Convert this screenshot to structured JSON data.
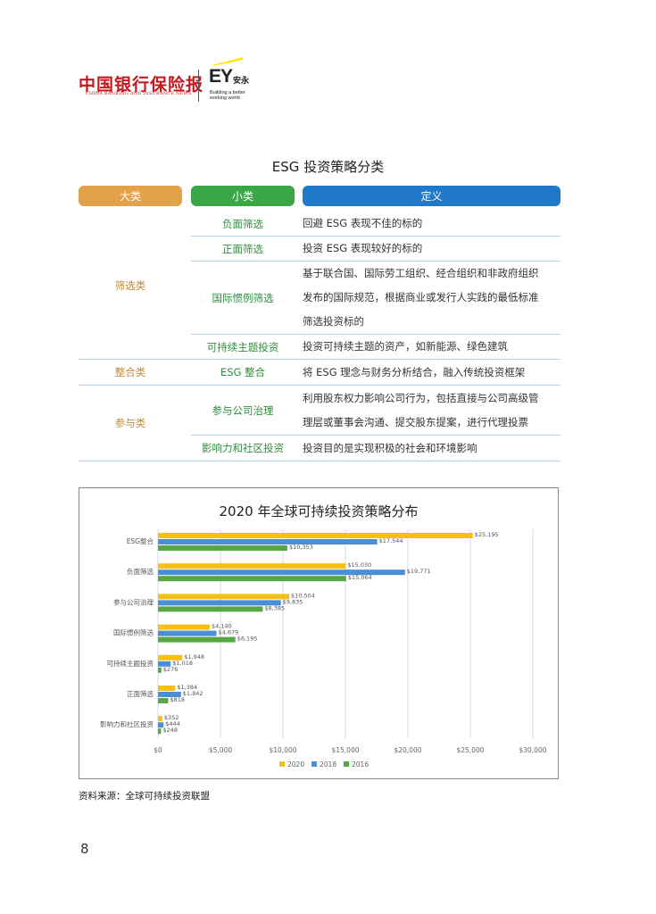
{
  "header": {
    "brand_cn": "中国银行保险报",
    "brand_en": "CHINA BANKING AND INSURANCE NEWS",
    "ey_logo": "EY",
    "ey_cn": "安永",
    "ey_tagline_1": "Building a better",
    "ey_tagline_2": "working world",
    "colors": {
      "brand_red": "#c8161d",
      "ey_yellow": "#ffe600"
    }
  },
  "table": {
    "title": "ESG 投资策略分类",
    "headers": {
      "category": "大类",
      "subcategory": "小类",
      "definition": "定义"
    },
    "header_colors": {
      "category": "#e3a24a",
      "subcategory": "#3aa646",
      "definition": "#1f78c8"
    },
    "rows": [
      {
        "subcategory": "负面筛选",
        "definition_lines": [
          "回避 ESG 表现不佳的标的"
        ]
      },
      {
        "subcategory": "正面筛选",
        "definition_lines": [
          "投资 ESG 表现较好的标的"
        ]
      },
      {
        "subcategory": "国际惯例筛选",
        "definition_lines": [
          "基于联合国、国际劳工组织、经合组织和非政府组织",
          "发布的国际规范，根据商业或发行人实践的最低标准",
          "筛选投资标的"
        ]
      },
      {
        "subcategory": "可持续主题投资",
        "definition_lines": [
          "投资可持续主题的资产，如新能源、绿色建筑"
        ]
      },
      {
        "subcategory": "ESG 整合",
        "definition_lines": [
          "将 ESG 理念与财务分析结合，融入传统投资框架"
        ]
      },
      {
        "subcategory": "参与公司治理",
        "definition_lines": [
          "利用股东权力影响公司行为，包括直接与公司高级管",
          "理层或董事会沟通、提交股东提案，进行代理投票"
        ]
      },
      {
        "subcategory": "影响力和社区投资",
        "definition_lines": [
          "投资目的是实现积极的社会和环境影响"
        ]
      }
    ],
    "categories": [
      {
        "label": "筛选类"
      },
      {
        "label": "整合类"
      },
      {
        "label": "参与类"
      }
    ]
  },
  "chart_data": {
    "type": "bar",
    "orientation": "horizontal",
    "title": "2020 年全球可持续投资策略分布",
    "categories": [
      "ESG整合",
      "负面筛选",
      "参与公司治理",
      "国际惯例筛选",
      "可持续主题投资",
      "正面筛选",
      "影响力和社区投资"
    ],
    "series": [
      {
        "name": "2020",
        "color": "#f5bf13",
        "values": [
          25195,
          15030,
          10504,
          4140,
          1948,
          1384,
          352
        ],
        "labels": [
          "$25,195",
          "$15,030",
          "$10,504",
          "$4,140",
          "$1,948",
          "$1,384",
          "$352"
        ]
      },
      {
        "name": "2018",
        "color": "#4a8fd6",
        "values": [
          17544,
          19771,
          9835,
          4679,
          1018,
          1842,
          444
        ],
        "labels": [
          "$17,544",
          "$19,771",
          "$9,835",
          "$4,679",
          "$1,018",
          "$1,842",
          "$444"
        ]
      },
      {
        "name": "2016",
        "color": "#57a845",
        "values": [
          10353,
          15064,
          8385,
          6195,
          276,
          818,
          248
        ],
        "labels": [
          "$10,353",
          "$15,064",
          "$8,385",
          "$6,195",
          "$276",
          "$818",
          "$248"
        ]
      }
    ],
    "xlim": [
      0,
      30000
    ],
    "xticks": [
      0,
      5000,
      10000,
      15000,
      20000,
      25000,
      30000
    ],
    "xtick_labels": [
      "$0",
      "$5,000",
      "$10,000",
      "$15,000",
      "$20,000",
      "$25,000",
      "$30,000"
    ],
    "grid": "vertical",
    "legend": "bottom"
  },
  "source": "资料来源：全球可持续投资联盟",
  "page_number": "8"
}
